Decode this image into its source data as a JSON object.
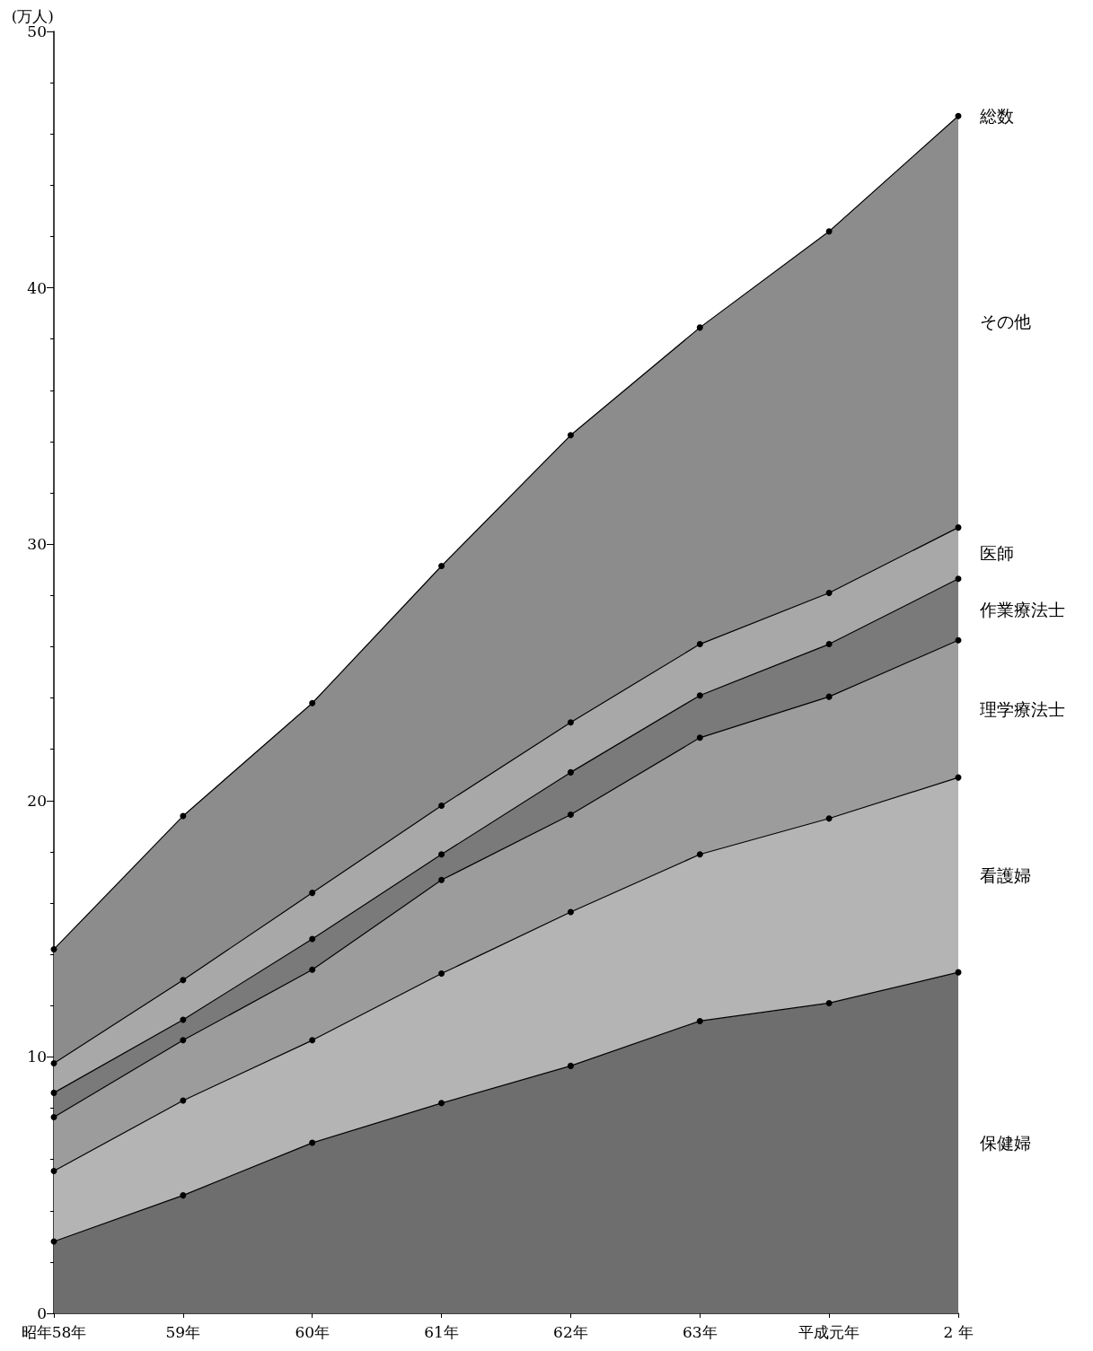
{
  "chart_data": {
    "type": "area",
    "ylabel": "(万人)",
    "stacked": true,
    "marker": "circle",
    "grid": false,
    "legend": false,
    "categories": [
      "昭年58年",
      "59年",
      "60年",
      "61年",
      "62年",
      "63年",
      "平成元年",
      "2 年"
    ],
    "ylim": [
      0,
      50
    ],
    "yticks": [
      0,
      10,
      20,
      30,
      40,
      50
    ],
    "series": [
      {
        "name": "保健婦",
        "color": "#6e6e6e",
        "values": [
          2.8,
          4.6,
          6.65,
          8.2,
          9.65,
          11.4,
          12.1,
          13.3
        ]
      },
      {
        "name": "看護婦",
        "color": "#b4b4b4",
        "values": [
          2.75,
          3.7,
          4.0,
          5.05,
          6.0,
          6.5,
          7.2,
          7.6
        ]
      },
      {
        "name": "理学療法士",
        "color": "#9c9c9c",
        "values": [
          2.1,
          2.35,
          2.75,
          3.65,
          3.8,
          4.55,
          4.75,
          5.35
        ]
      },
      {
        "name": "作業療法士",
        "color": "#7a7a7a",
        "values": [
          0.95,
          0.8,
          1.2,
          1.0,
          1.65,
          1.65,
          2.05,
          2.4
        ]
      },
      {
        "name": "医師",
        "color": "#a8a8a8",
        "values": [
          1.15,
          1.55,
          1.8,
          1.9,
          1.95,
          2.0,
          2.0,
          2.0
        ]
      },
      {
        "name": "その他",
        "color": "#8c8c8c",
        "values": [
          4.45,
          6.4,
          7.4,
          9.35,
          11.2,
          12.35,
          14.1,
          16.05
        ]
      }
    ],
    "annotations": [
      {
        "text": "総数",
        "x": "2 年",
        "y": 46.7
      }
    ]
  }
}
